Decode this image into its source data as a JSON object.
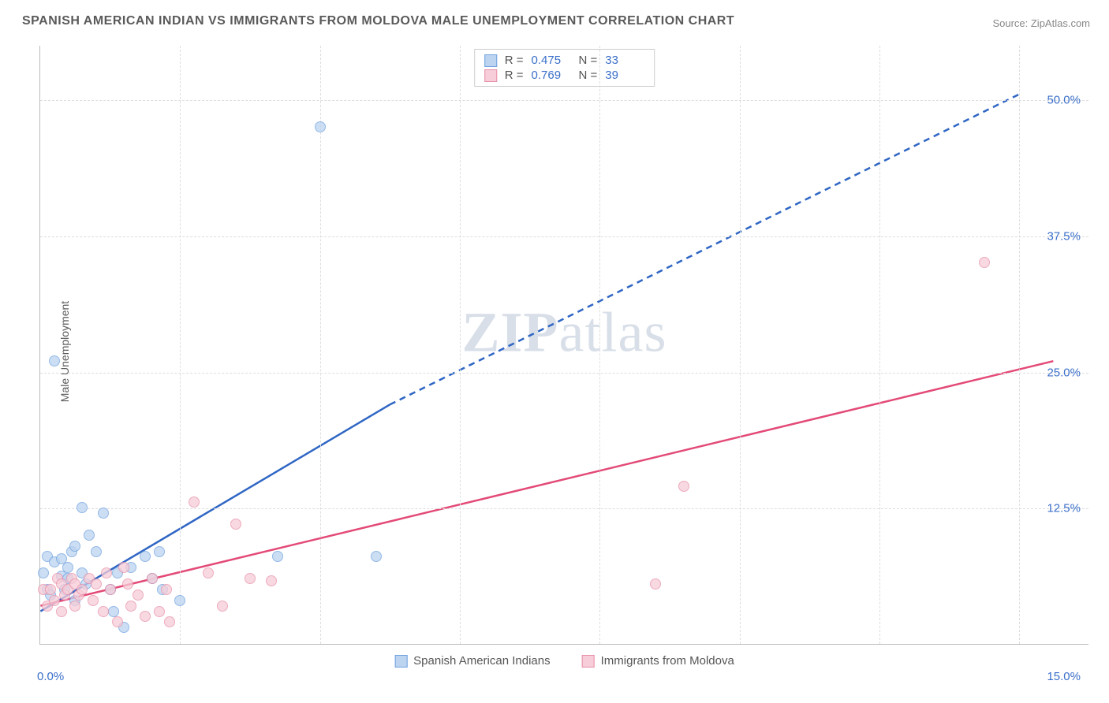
{
  "title": "SPANISH AMERICAN INDIAN VS IMMIGRANTS FROM MOLDOVA MALE UNEMPLOYMENT CORRELATION CHART",
  "source": "Source: ZipAtlas.com",
  "ylabel": "Male Unemployment",
  "watermark_bold": "ZIP",
  "watermark_light": "atlas",
  "chart": {
    "type": "scatter",
    "background_color": "#ffffff",
    "grid_color": "#dddddd",
    "axis_color": "#bbbbbb",
    "tick_label_color": "#3b6fc9",
    "tick_fontsize": 15,
    "title_fontsize": 16,
    "title_color": "#5a5a5a",
    "xlim": [
      0,
      15
    ],
    "ylim": [
      0,
      55
    ],
    "yticks": [
      {
        "value": 12.5,
        "label": "12.5%"
      },
      {
        "value": 25.0,
        "label": "25.0%"
      },
      {
        "value": 37.5,
        "label": "37.5%"
      },
      {
        "value": 50.0,
        "label": "50.0%"
      }
    ],
    "xticks_lines": [
      2,
      4,
      6,
      8,
      10,
      12,
      14
    ],
    "xtick_left": {
      "value": 0,
      "label": "0.0%"
    },
    "xtick_right": {
      "value": 15,
      "label": "15.0%"
    },
    "marker_radius": 7,
    "series": [
      {
        "key": "sai",
        "label": "Spanish American Indians",
        "fill_color": "#bcd4ef",
        "stroke_color": "#6fa1df",
        "line_color": "#2f66c4",
        "line_width": 2.5,
        "R": "0.475",
        "N": "33",
        "trend": {
          "x1": 0,
          "y1": 3.0,
          "x2_solid": 5.0,
          "y2_solid": 22.0,
          "x2_dash": 14.0,
          "y2_dash": 50.5
        },
        "points": [
          [
            0.05,
            6.5
          ],
          [
            0.1,
            5.0
          ],
          [
            0.1,
            8.0
          ],
          [
            0.15,
            4.5
          ],
          [
            0.2,
            7.5
          ],
          [
            0.2,
            26.0
          ],
          [
            0.3,
            6.2
          ],
          [
            0.3,
            7.8
          ],
          [
            0.35,
            5.0
          ],
          [
            0.4,
            6.0
          ],
          [
            0.4,
            7.0
          ],
          [
            0.45,
            8.5
          ],
          [
            0.5,
            4.0
          ],
          [
            0.5,
            9.0
          ],
          [
            0.6,
            12.5
          ],
          [
            0.6,
            6.5
          ],
          [
            0.65,
            5.5
          ],
          [
            0.7,
            10.0
          ],
          [
            0.8,
            8.5
          ],
          [
            0.9,
            12.0
          ],
          [
            1.0,
            5.0
          ],
          [
            1.05,
            3.0
          ],
          [
            1.1,
            6.5
          ],
          [
            1.2,
            1.5
          ],
          [
            1.3,
            7.0
          ],
          [
            1.5,
            8.0
          ],
          [
            1.6,
            6.0
          ],
          [
            1.7,
            8.5
          ],
          [
            1.75,
            5.0
          ],
          [
            2.0,
            4.0
          ],
          [
            3.4,
            8.0
          ],
          [
            4.0,
            47.5
          ],
          [
            4.8,
            8.0
          ]
        ]
      },
      {
        "key": "mol",
        "label": "Immigrants from Moldova",
        "fill_color": "#f6cdd8",
        "stroke_color": "#e88fa8",
        "line_color": "#e34a77",
        "line_width": 2.5,
        "R": "0.769",
        "N": "39",
        "trend": {
          "x1": 0,
          "y1": 3.5,
          "x2_solid": 14.5,
          "y2_solid": 26.0
        },
        "points": [
          [
            0.05,
            5.0
          ],
          [
            0.1,
            3.5
          ],
          [
            0.15,
            5.0
          ],
          [
            0.2,
            4.0
          ],
          [
            0.25,
            6.0
          ],
          [
            0.3,
            3.0
          ],
          [
            0.3,
            5.5
          ],
          [
            0.35,
            4.5
          ],
          [
            0.4,
            5.0
          ],
          [
            0.45,
            6.0
          ],
          [
            0.5,
            3.5
          ],
          [
            0.5,
            5.5
          ],
          [
            0.55,
            4.5
          ],
          [
            0.6,
            5.0
          ],
          [
            0.7,
            6.0
          ],
          [
            0.75,
            4.0
          ],
          [
            0.8,
            5.5
          ],
          [
            0.9,
            3.0
          ],
          [
            0.95,
            6.5
          ],
          [
            1.0,
            5.0
          ],
          [
            1.1,
            2.0
          ],
          [
            1.2,
            7.0
          ],
          [
            1.25,
            5.5
          ],
          [
            1.3,
            3.5
          ],
          [
            1.4,
            4.5
          ],
          [
            1.5,
            2.5
          ],
          [
            1.6,
            6.0
          ],
          [
            1.7,
            3.0
          ],
          [
            1.8,
            5.0
          ],
          [
            1.85,
            2.0
          ],
          [
            2.2,
            13.0
          ],
          [
            2.4,
            6.5
          ],
          [
            2.6,
            3.5
          ],
          [
            2.8,
            11.0
          ],
          [
            3.0,
            6.0
          ],
          [
            3.3,
            5.8
          ],
          [
            8.8,
            5.5
          ],
          [
            9.2,
            14.5
          ],
          [
            13.5,
            35.0
          ]
        ]
      }
    ]
  },
  "stat_legend": {
    "r_label": "R =",
    "n_label": "N ="
  }
}
